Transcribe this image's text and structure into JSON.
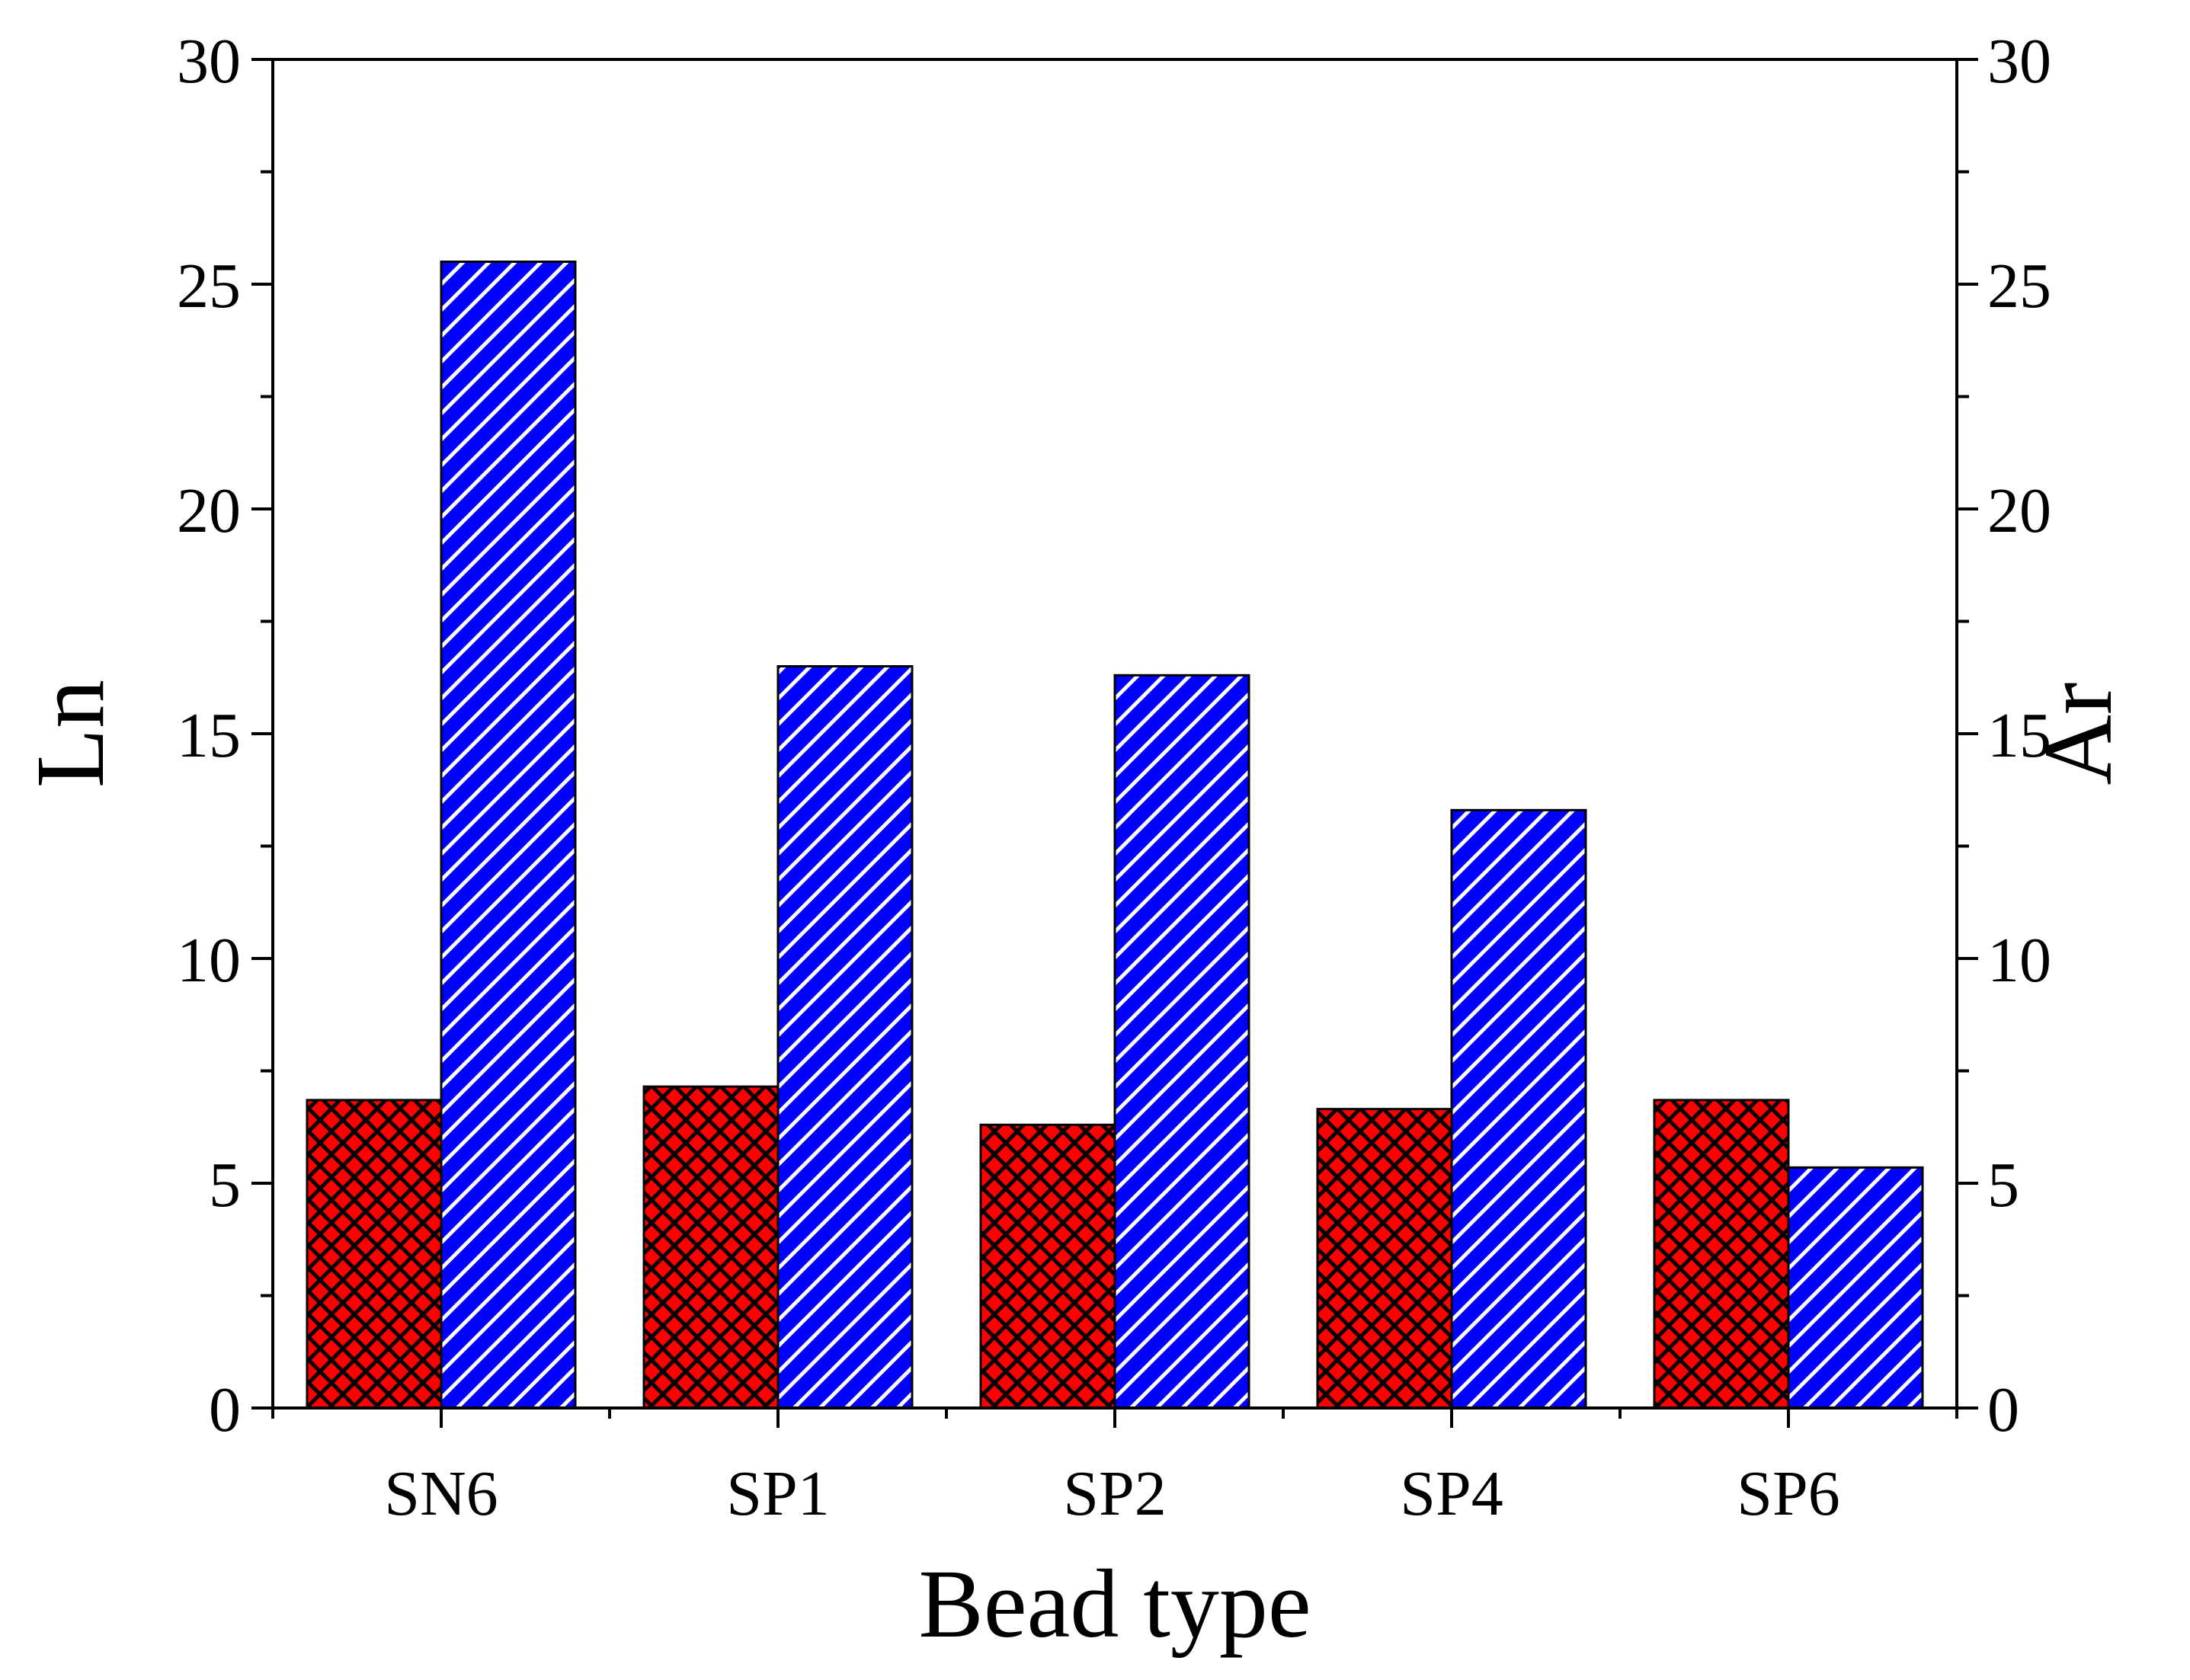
{
  "chart_data": {
    "type": "bar",
    "title": "",
    "xlabel": "Bead type",
    "ylabel_left": "Ln",
    "ylabel_right": "Ar",
    "categories": [
      "SN6",
      "SP1",
      "SP2",
      "SP4",
      "SP6"
    ],
    "ylim": [
      0,
      30
    ],
    "yticks": [
      "0",
      "5",
      "10",
      "15",
      "20",
      "25",
      "30"
    ],
    "grid": false,
    "series": [
      {
        "name": "Ln",
        "axis": "left",
        "color": "#ff0000",
        "pattern": "crosshatch",
        "values": [
          6.85,
          7.15,
          6.3,
          6.65,
          6.85
        ]
      },
      {
        "name": "Ar",
        "axis": "right",
        "color": "#0000ff",
        "pattern": "diagonal",
        "values": [
          25.5,
          16.5,
          16.3,
          13.3,
          5.35
        ]
      }
    ]
  }
}
